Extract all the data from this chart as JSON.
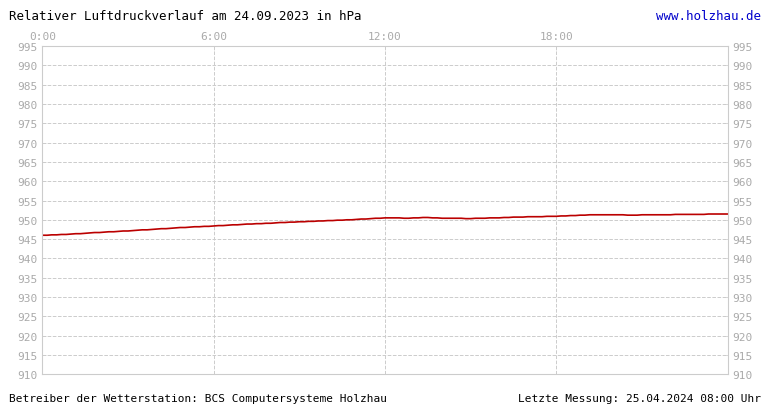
{
  "title_left": "Relativer Luftdruckverlauf am 24.09.2023 in hPa",
  "title_right": "www.holzhau.de",
  "footer_left": "Betreiber der Wetterstation: BCS Computersysteme Holzhau",
  "footer_right": "Letzte Messung: 25.04.2024 08:00 Uhr",
  "ylim": [
    910,
    995
  ],
  "xlim": [
    0,
    24
  ],
  "ytick_step": 5,
  "xticks": [
    0,
    6,
    12,
    18,
    24
  ],
  "xtick_labels": [
    "0:00",
    "6:00",
    "12:00",
    "18:00",
    ""
  ],
  "line_color": "#bb0000",
  "line_width": 1.2,
  "bg_color": "#ffffff",
  "plot_bg_color": "#ffffff",
  "grid_color": "#cccccc",
  "tick_label_color": "#aaaaaa",
  "title_color_left": "#000000",
  "title_color_right": "#0000cc",
  "footer_color": "#000000",
  "pressure_x": [
    0.0,
    0.17,
    0.33,
    0.5,
    0.67,
    0.83,
    1.0,
    1.17,
    1.33,
    1.5,
    1.67,
    1.83,
    2.0,
    2.17,
    2.33,
    2.5,
    2.67,
    2.83,
    3.0,
    3.17,
    3.33,
    3.5,
    3.67,
    3.83,
    4.0,
    4.17,
    4.33,
    4.5,
    4.67,
    4.83,
    5.0,
    5.17,
    5.33,
    5.5,
    5.67,
    5.83,
    6.0,
    6.17,
    6.33,
    6.5,
    6.67,
    6.83,
    7.0,
    7.17,
    7.33,
    7.5,
    7.67,
    7.83,
    8.0,
    8.17,
    8.33,
    8.5,
    8.67,
    8.83,
    9.0,
    9.17,
    9.33,
    9.5,
    9.67,
    9.83,
    10.0,
    10.17,
    10.33,
    10.5,
    10.67,
    10.83,
    11.0,
    11.17,
    11.33,
    11.5,
    11.67,
    11.83,
    12.0,
    12.17,
    12.33,
    12.5,
    12.67,
    12.83,
    13.0,
    13.17,
    13.33,
    13.5,
    13.67,
    13.83,
    14.0,
    14.17,
    14.33,
    14.5,
    14.67,
    14.83,
    15.0,
    15.17,
    15.33,
    15.5,
    15.67,
    15.83,
    16.0,
    16.17,
    16.33,
    16.5,
    16.67,
    16.83,
    17.0,
    17.17,
    17.33,
    17.5,
    17.67,
    17.83,
    18.0,
    18.17,
    18.33,
    18.5,
    18.67,
    18.83,
    19.0,
    19.17,
    19.33,
    19.5,
    19.67,
    19.83,
    20.0,
    20.17,
    20.33,
    20.5,
    20.67,
    20.83,
    21.0,
    21.17,
    21.33,
    21.5,
    21.67,
    21.83,
    22.0,
    22.17,
    22.33,
    22.5,
    22.67,
    22.83,
    23.0,
    23.17,
    23.33,
    23.5,
    23.67,
    23.83,
    24.0
  ],
  "pressure_y": [
    946.0,
    946.0,
    946.1,
    946.1,
    946.2,
    946.2,
    946.3,
    946.4,
    946.4,
    946.5,
    946.6,
    946.7,
    946.7,
    946.8,
    946.9,
    946.9,
    947.0,
    947.1,
    947.1,
    947.2,
    947.3,
    947.4,
    947.4,
    947.5,
    947.6,
    947.7,
    947.7,
    947.8,
    947.9,
    948.0,
    948.0,
    948.1,
    948.2,
    948.2,
    948.3,
    948.3,
    948.4,
    948.5,
    948.5,
    948.6,
    948.7,
    948.7,
    948.8,
    948.9,
    948.9,
    949.0,
    949.0,
    949.1,
    949.1,
    949.2,
    949.3,
    949.3,
    949.4,
    949.4,
    949.5,
    949.5,
    949.6,
    949.6,
    949.7,
    949.7,
    949.8,
    949.8,
    949.9,
    949.9,
    950.0,
    950.0,
    950.1,
    950.2,
    950.2,
    950.3,
    950.4,
    950.4,
    950.5,
    950.5,
    950.5,
    950.5,
    950.4,
    950.4,
    950.5,
    950.5,
    950.6,
    950.6,
    950.5,
    950.5,
    950.4,
    950.4,
    950.4,
    950.4,
    950.4,
    950.3,
    950.3,
    950.4,
    950.4,
    950.4,
    950.5,
    950.5,
    950.5,
    950.6,
    950.6,
    950.7,
    950.7,
    950.7,
    950.8,
    950.8,
    950.8,
    950.8,
    950.9,
    950.9,
    950.9,
    951.0,
    951.0,
    951.1,
    951.1,
    951.2,
    951.2,
    951.3,
    951.3,
    951.3,
    951.3,
    951.3,
    951.3,
    951.3,
    951.3,
    951.2,
    951.2,
    951.2,
    951.3,
    951.3,
    951.3,
    951.3,
    951.3,
    951.3,
    951.3,
    951.4,
    951.4,
    951.4,
    951.4,
    951.4,
    951.4,
    951.4,
    951.5,
    951.5,
    951.5,
    951.5,
    951.5
  ]
}
